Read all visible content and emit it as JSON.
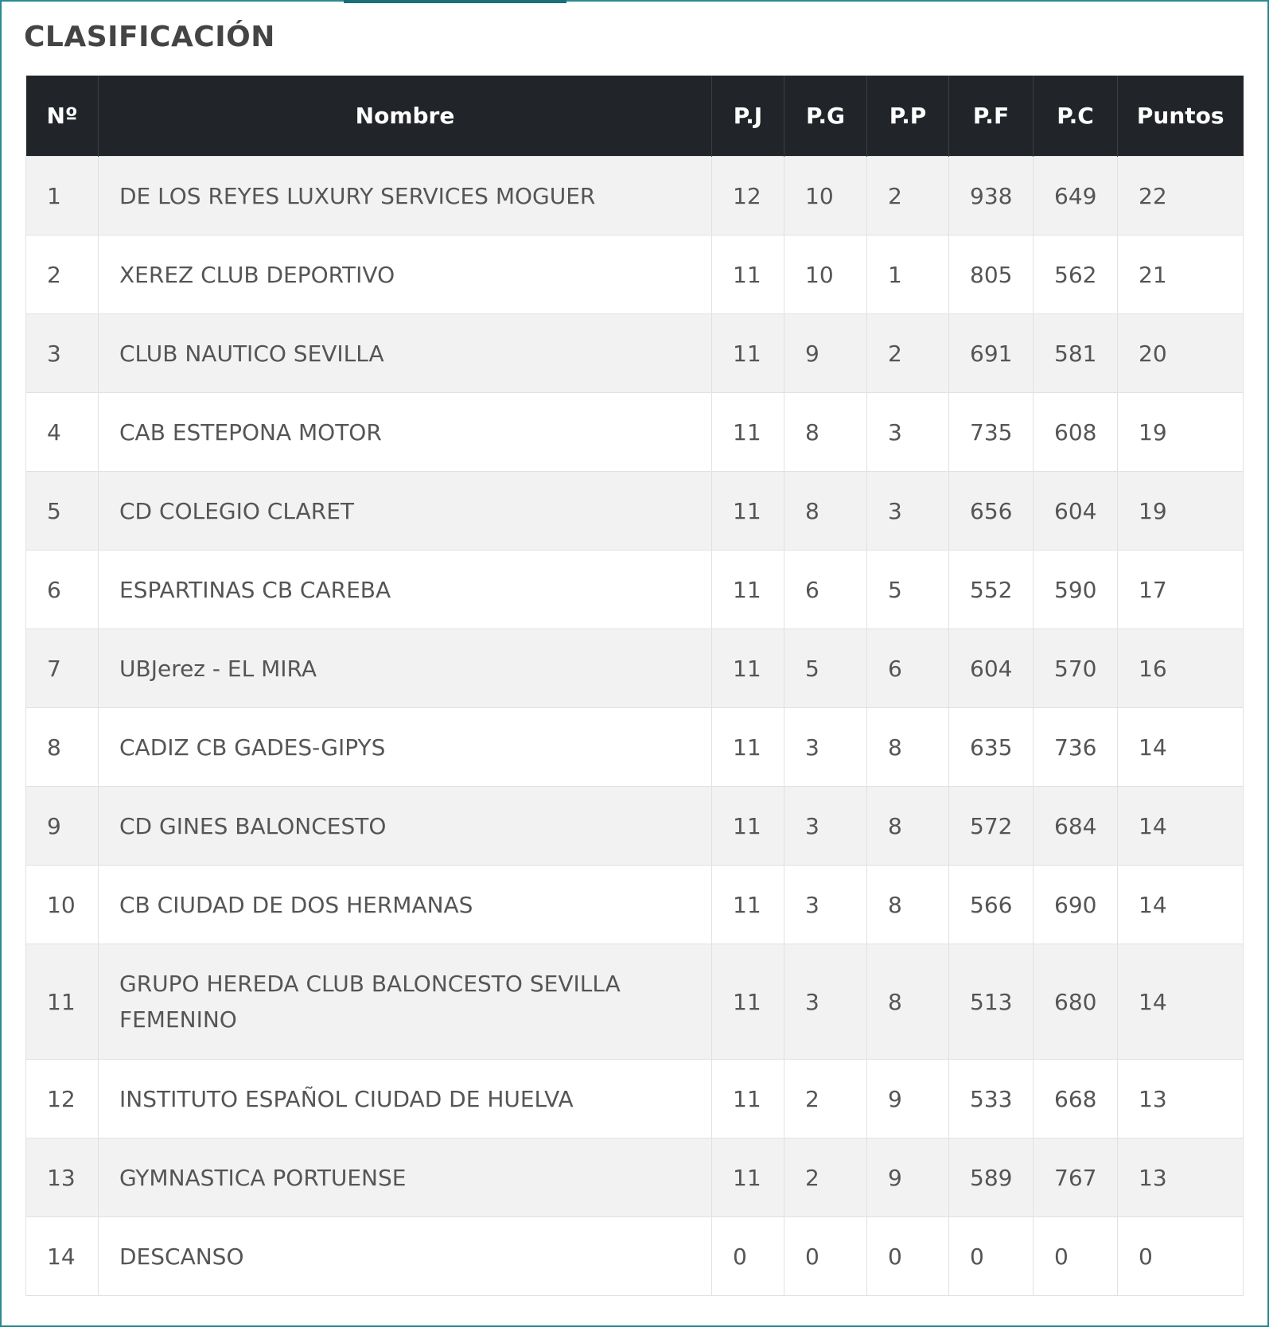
{
  "title": "CLASIFICACIÓN",
  "headers": {
    "no": "Nº",
    "name": "Nombre",
    "pj": "P.J",
    "pg": "P.G",
    "pp": "P.P",
    "pf": "P.F",
    "pc": "P.C",
    "points": "Puntos"
  },
  "rows": [
    {
      "no": "1",
      "name": "DE LOS REYES LUXURY SERVICES MOGUER",
      "pj": "12",
      "pg": "10",
      "pp": "2",
      "pf": "938",
      "pc": "649",
      "points": "22"
    },
    {
      "no": "2",
      "name": "XEREZ CLUB DEPORTIVO",
      "pj": "11",
      "pg": "10",
      "pp": "1",
      "pf": "805",
      "pc": "562",
      "points": "21"
    },
    {
      "no": "3",
      "name": "CLUB NAUTICO SEVILLA",
      "pj": "11",
      "pg": "9",
      "pp": "2",
      "pf": "691",
      "pc": "581",
      "points": "20"
    },
    {
      "no": "4",
      "name": "CAB ESTEPONA MOTOR",
      "pj": "11",
      "pg": "8",
      "pp": "3",
      "pf": "735",
      "pc": "608",
      "points": "19"
    },
    {
      "no": "5",
      "name": "CD COLEGIO CLARET",
      "pj": "11",
      "pg": "8",
      "pp": "3",
      "pf": "656",
      "pc": "604",
      "points": "19"
    },
    {
      "no": "6",
      "name": "ESPARTINAS CB CAREBA",
      "pj": "11",
      "pg": "6",
      "pp": "5",
      "pf": "552",
      "pc": "590",
      "points": "17"
    },
    {
      "no": "7",
      "name": "UBJerez - EL MIRA",
      "pj": "11",
      "pg": "5",
      "pp": "6",
      "pf": "604",
      "pc": "570",
      "points": "16"
    },
    {
      "no": "8",
      "name": "CADIZ CB GADES-GIPYS",
      "pj": "11",
      "pg": "3",
      "pp": "8",
      "pf": "635",
      "pc": "736",
      "points": "14"
    },
    {
      "no": "9",
      "name": "CD GINES BALONCESTO",
      "pj": "11",
      "pg": "3",
      "pp": "8",
      "pf": "572",
      "pc": "684",
      "points": "14"
    },
    {
      "no": "10",
      "name": "CB CIUDAD DE DOS HERMANAS",
      "pj": "11",
      "pg": "3",
      "pp": "8",
      "pf": "566",
      "pc": "690",
      "points": "14"
    },
    {
      "no": "11",
      "name": "GRUPO HEREDA CLUB BALONCESTO SEVILLA FEMENINO",
      "pj": "11",
      "pg": "3",
      "pp": "8",
      "pf": "513",
      "pc": "680",
      "points": "14"
    },
    {
      "no": "12",
      "name": "INSTITUTO ESPAÑOL CIUDAD DE HUELVA",
      "pj": "11",
      "pg": "2",
      "pp": "9",
      "pf": "533",
      "pc": "668",
      "points": "13"
    },
    {
      "no": "13",
      "name": "GYMNASTICA PORTUENSE",
      "pj": "11",
      "pg": "2",
      "pp": "9",
      "pf": "589",
      "pc": "767",
      "points": "13"
    },
    {
      "no": "14",
      "name": "DESCANSO",
      "pj": "0",
      "pg": "0",
      "pp": "0",
      "pf": "0",
      "pc": "0",
      "points": "0"
    }
  ]
}
